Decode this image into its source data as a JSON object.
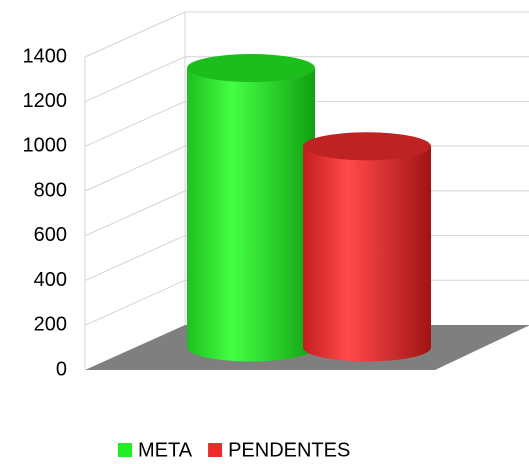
{
  "chart_data": {
    "type": "bar3d",
    "categories": [
      null
    ],
    "series": [
      {
        "name": "META",
        "color": "#22ee22",
        "values": [
          1250
        ]
      },
      {
        "name": "PENDENTES",
        "color": "#ee2a2a",
        "values": [
          900
        ]
      }
    ],
    "ylim": [
      0,
      1400
    ],
    "yticks": [
      0,
      200,
      400,
      600,
      800,
      1000,
      1200,
      1400
    ],
    "grid": true,
    "legend": "bottom"
  }
}
